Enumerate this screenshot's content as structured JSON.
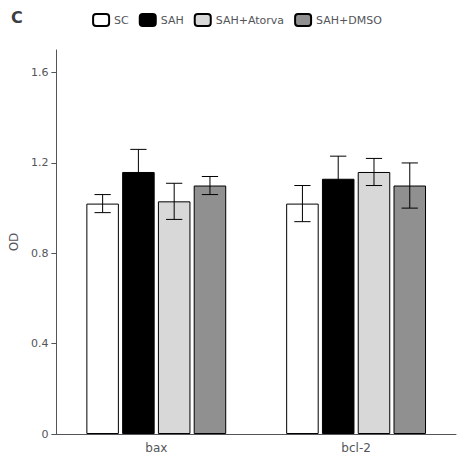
{
  "chart_data": {
    "type": "bar",
    "title": "C",
    "categories": [
      "bax",
      "bcl-2"
    ],
    "series": [
      {
        "name": "SC",
        "color": "#ffffff",
        "values": [
          1.02,
          1.02
        ],
        "errors": [
          0.04,
          0.08
        ]
      },
      {
        "name": "SAH",
        "color": "#000000",
        "values": [
          1.16,
          1.13
        ],
        "errors": [
          0.1,
          0.1
        ]
      },
      {
        "name": "SAH+Atorva",
        "color": "#d8d8d8",
        "values": [
          1.03,
          1.16
        ],
        "errors": [
          0.08,
          0.06
        ]
      },
      {
        "name": "SAH+DMSO",
        "color": "#909090",
        "values": [
          1.1,
          1.1
        ],
        "errors": [
          0.04,
          0.1
        ]
      }
    ],
    "ylabel": "OD",
    "ylim": [
      0,
      1.7
    ],
    "yticks": [
      0,
      0.4,
      0.8,
      1.2,
      1.6
    ],
    "grid": false,
    "legend": "top"
  }
}
